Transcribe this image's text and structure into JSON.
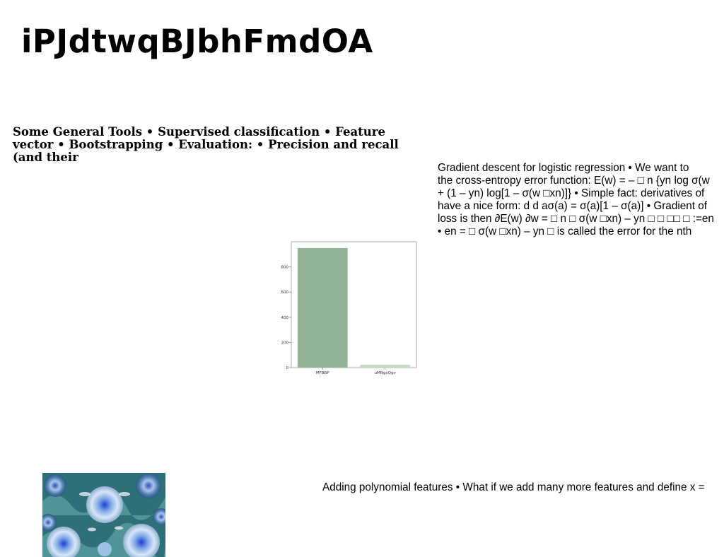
{
  "page": {
    "title": "iPJdtwqBJbhFmdOA",
    "summary": "Some General Tools • Supervised classification • Feature vector • Bootstrapping • Evaluation: • Precision and recall (and their",
    "gradient_text": "Gradient descent for logistic regression • We want to\nthe cross-entropy error function: E(w) = – □ n {yn log σ(w\n+ (1 – yn) log[1 – σ(w □xn)]} • Simple fact: derivatives of\nhave a nice form: d d aσ(a) = σ(a)[1 – σ(a)] • Gradient of\nloss is then ∂E(w) ∂w = □ n □ σ(w □xn) – yn □ □ □□ □ :=en\n• en = □ σ(w □xn) – yn □ is called the error for the nth",
    "poly_text": "Adding polynomial features • What if we add many more features and define x ="
  },
  "chart_data": {
    "type": "bar",
    "categories": [
      "MFBBP",
      "uMNgxQgv"
    ],
    "values": [
      950,
      22
    ],
    "colors": [
      "#93b396",
      "#c4dcc0"
    ],
    "yticks": [
      0,
      200,
      400,
      600,
      800
    ],
    "ylim": [
      0,
      1000
    ],
    "title": "",
    "xlabel": "",
    "ylabel": ""
  },
  "image": {
    "description_icon": "blue-floral-pattern-photo"
  }
}
